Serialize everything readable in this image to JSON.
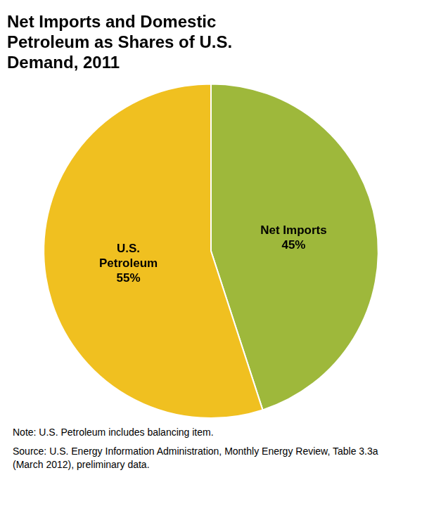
{
  "chart_data": {
    "type": "pie",
    "title": "Net Imports and Domestic\nPetroleum as Shares of U.S.\nDemand, 2011",
    "categories": [
      "Net Imports",
      "U.S.\nPetroleum"
    ],
    "values": [
      45,
      55
    ],
    "value_labels": [
      "45%",
      "55%"
    ],
    "data_labels": true,
    "colors": [
      "#9eb83b",
      "#f0c020"
    ],
    "legend": false,
    "annotations": [
      "Note: U.S. Petroleum includes balancing item.",
      "Source: U.S. Energy Information Administration, Monthly Energy Review, Table 3.3a (March 2012), preliminary data."
    ]
  }
}
